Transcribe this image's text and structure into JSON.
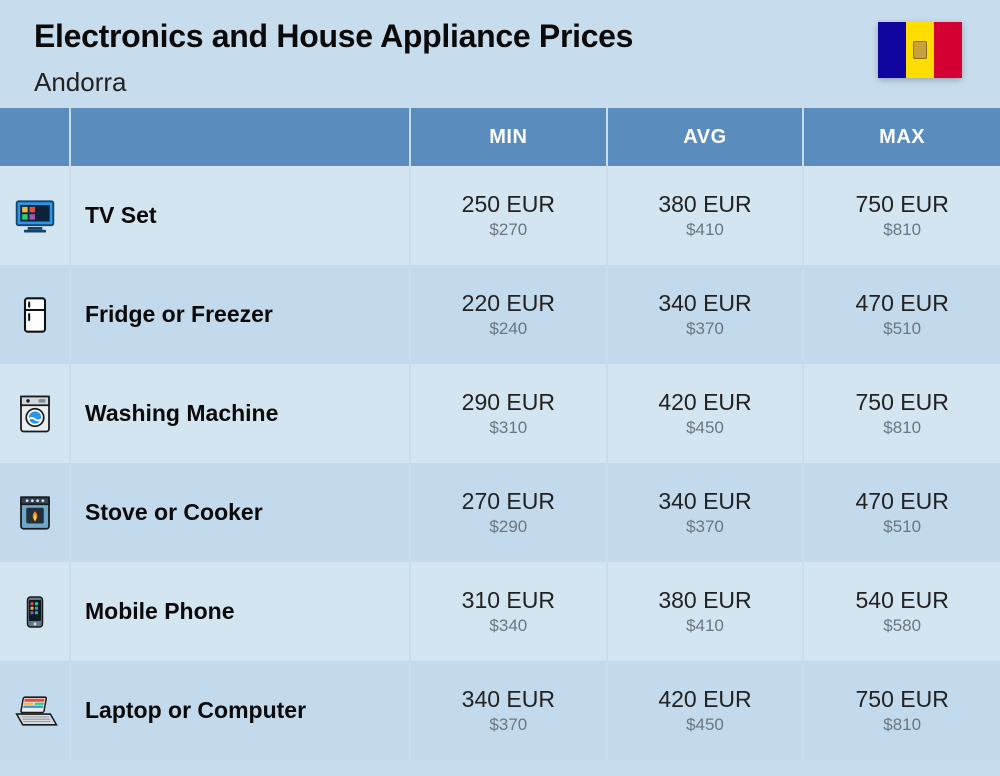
{
  "title": "Electronics and House Appliance Prices",
  "country": "Andorra",
  "flag": {
    "colors": [
      "#10069f",
      "#fedd00",
      "#d50032"
    ]
  },
  "columns": {
    "min": "MIN",
    "avg": "AVG",
    "max": "MAX"
  },
  "table_style": {
    "header_bg": "#5a8dbd",
    "header_fg": "#ffffff",
    "row_odd_bg": "#d4e5f2",
    "row_even_bg": "#c3daec",
    "page_bg": "#c7dced",
    "primary_text": "#222222",
    "secondary_text": "#6a7680",
    "border_color": "#c7dced",
    "header_fontsize": 20,
    "name_fontsize": 23,
    "price_primary_fontsize": 23,
    "price_secondary_fontsize": 17
  },
  "rows": [
    {
      "icon": "tv",
      "name": "TV Set",
      "min_p": "250 EUR",
      "min_s": "$270",
      "avg_p": "380 EUR",
      "avg_s": "$410",
      "max_p": "750 EUR",
      "max_s": "$810"
    },
    {
      "icon": "fridge",
      "name": "Fridge or Freezer",
      "min_p": "220 EUR",
      "min_s": "$240",
      "avg_p": "340 EUR",
      "avg_s": "$370",
      "max_p": "470 EUR",
      "max_s": "$510"
    },
    {
      "icon": "washer",
      "name": "Washing Machine",
      "min_p": "290 EUR",
      "min_s": "$310",
      "avg_p": "420 EUR",
      "avg_s": "$450",
      "max_p": "750 EUR",
      "max_s": "$810"
    },
    {
      "icon": "stove",
      "name": "Stove or Cooker",
      "min_p": "270 EUR",
      "min_s": "$290",
      "avg_p": "340 EUR",
      "avg_s": "$370",
      "max_p": "470 EUR",
      "max_s": "$510"
    },
    {
      "icon": "phone",
      "name": "Mobile Phone",
      "min_p": "310 EUR",
      "min_s": "$340",
      "avg_p": "380 EUR",
      "avg_s": "$410",
      "max_p": "540 EUR",
      "max_s": "$580"
    },
    {
      "icon": "laptop",
      "name": "Laptop or Computer",
      "min_p": "340 EUR",
      "min_s": "$370",
      "avg_p": "420 EUR",
      "avg_s": "$450",
      "max_p": "750 EUR",
      "max_s": "$810"
    }
  ]
}
